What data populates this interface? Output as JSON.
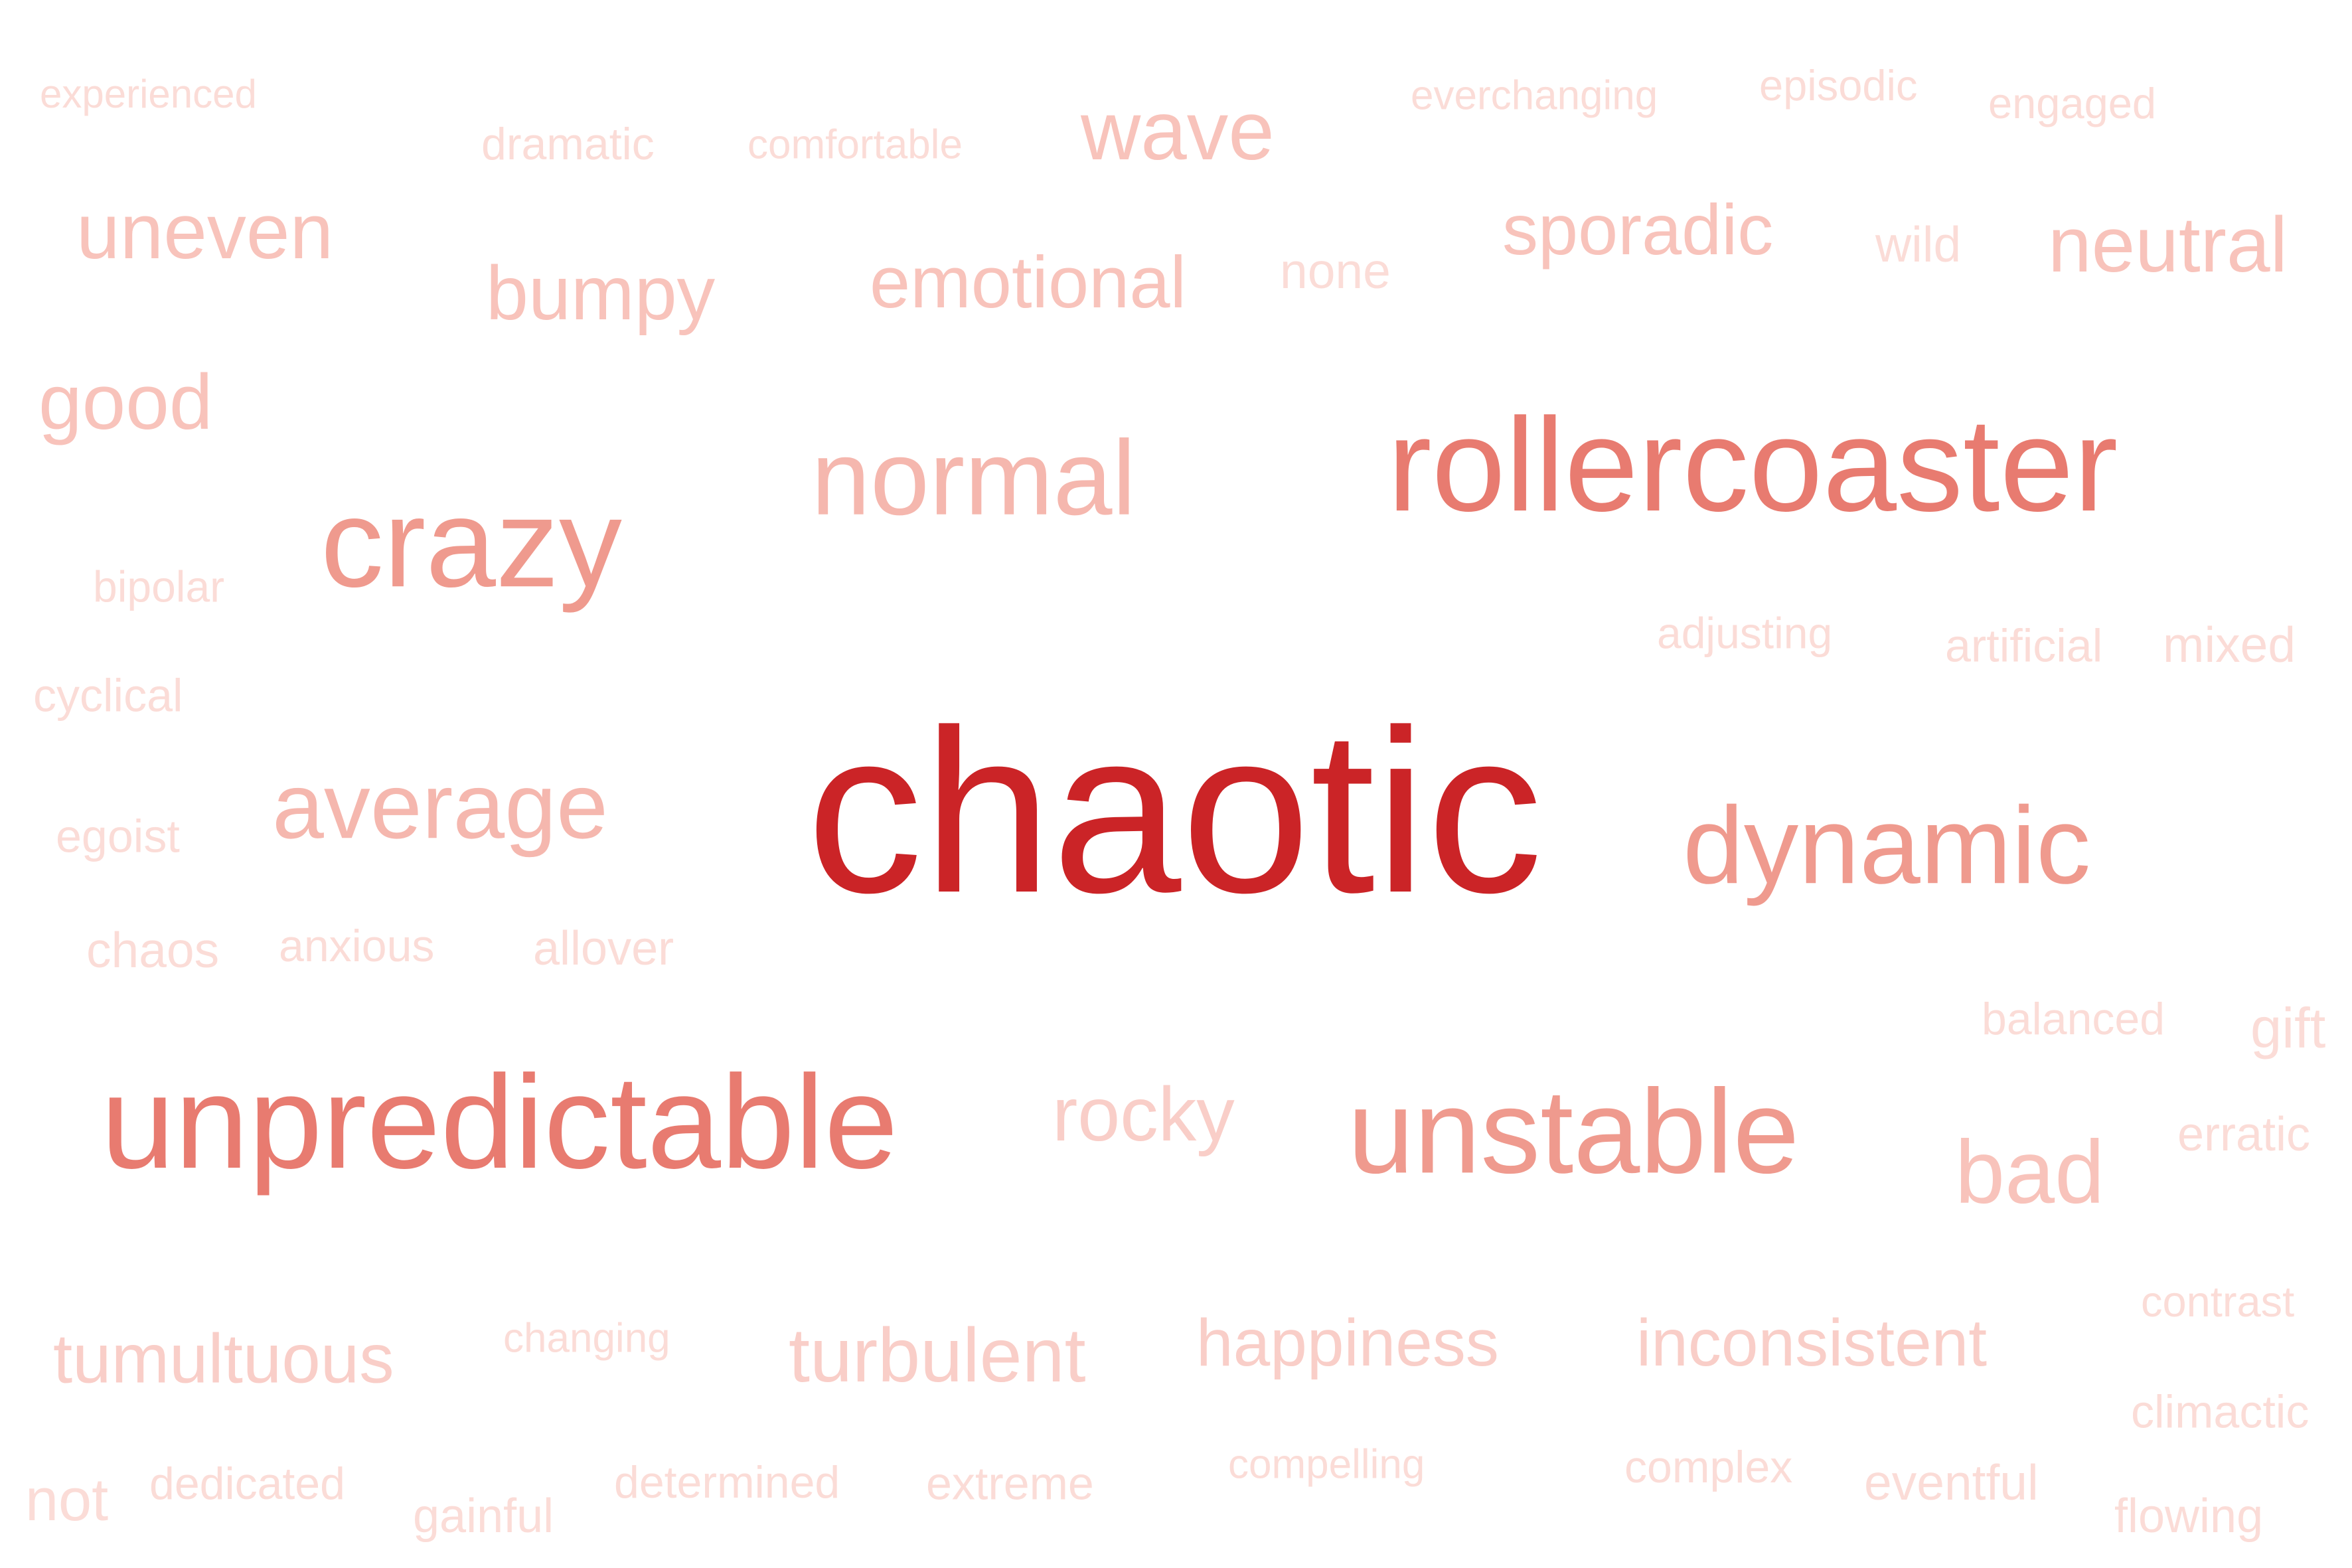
{
  "words": [
    {
      "text": "chaotic",
      "color": "#cb2427"
    },
    {
      "text": "rollercoaster",
      "color": "#e87b70"
    },
    {
      "text": "unpredictable",
      "color": "#e87b70"
    },
    {
      "text": "crazy",
      "color": "#ef9a8e"
    },
    {
      "text": "dynamic",
      "color": "#ef9a8e"
    },
    {
      "text": "unstable",
      "color": "#ef9a8e"
    },
    {
      "text": "normal",
      "color": "#f5b7ae"
    },
    {
      "text": "average",
      "color": "#f5b7ae"
    },
    {
      "text": "wave",
      "color": "#f8c3bb"
    },
    {
      "text": "uneven",
      "color": "#f8c3bb"
    },
    {
      "text": "bumpy",
      "color": "#f8c3bb"
    },
    {
      "text": "emotional",
      "color": "#f8c3bb"
    },
    {
      "text": "sporadic",
      "color": "#f8c3bb"
    },
    {
      "text": "neutral",
      "color": "#f8c3bb"
    },
    {
      "text": "good",
      "color": "#f8c3bb"
    },
    {
      "text": "bad",
      "color": "#f8c3bb"
    },
    {
      "text": "rocky",
      "color": "#f9cec8"
    },
    {
      "text": "tumultuous",
      "color": "#f9cec8"
    },
    {
      "text": "turbulent",
      "color": "#f9cec8"
    },
    {
      "text": "happiness",
      "color": "#f9cec8"
    },
    {
      "text": "inconsistent",
      "color": "#f9cec8"
    },
    {
      "text": "experienced",
      "color": "#fbdcd7"
    },
    {
      "text": "dramatic",
      "color": "#fbdcd7"
    },
    {
      "text": "comfortable",
      "color": "#fbdcd7"
    },
    {
      "text": "everchanging",
      "color": "#fbdcd7"
    },
    {
      "text": "episodic",
      "color": "#fbdcd7"
    },
    {
      "text": "engaged",
      "color": "#fbdcd7"
    },
    {
      "text": "none",
      "color": "#fbdcd7"
    },
    {
      "text": "wild",
      "color": "#fbdcd7"
    },
    {
      "text": "bipolar",
      "color": "#fbdcd7"
    },
    {
      "text": "adjusting",
      "color": "#fbdcd7"
    },
    {
      "text": "artificial",
      "color": "#fbdcd7"
    },
    {
      "text": "mixed",
      "color": "#fbdcd7"
    },
    {
      "text": "cyclical",
      "color": "#fbdcd7"
    },
    {
      "text": "egoist",
      "color": "#fbdcd7"
    },
    {
      "text": "chaos",
      "color": "#fbdcd7"
    },
    {
      "text": "anxious",
      "color": "#fbdcd7"
    },
    {
      "text": "allover",
      "color": "#fbdcd7"
    },
    {
      "text": "balanced",
      "color": "#fbdcd7"
    },
    {
      "text": "gift",
      "color": "#fbdcd7"
    },
    {
      "text": "erratic",
      "color": "#fbdcd7"
    },
    {
      "text": "changing",
      "color": "#fbdcd7"
    },
    {
      "text": "contrast",
      "color": "#fbdcd7"
    },
    {
      "text": "climactic",
      "color": "#fbdcd7"
    },
    {
      "text": "not",
      "color": "#fbdcd7"
    },
    {
      "text": "dedicated",
      "color": "#fbdcd7"
    },
    {
      "text": "gainful",
      "color": "#fbdcd7"
    },
    {
      "text": "determined",
      "color": "#fbdcd7"
    },
    {
      "text": "extreme",
      "color": "#fbdcd7"
    },
    {
      "text": "compelling",
      "color": "#fbdcd7"
    },
    {
      "text": "complex",
      "color": "#fbdcd7"
    },
    {
      "text": "eventful",
      "color": "#fbdcd7"
    },
    {
      "text": "flowing",
      "color": "#fbdcd7"
    }
  ]
}
